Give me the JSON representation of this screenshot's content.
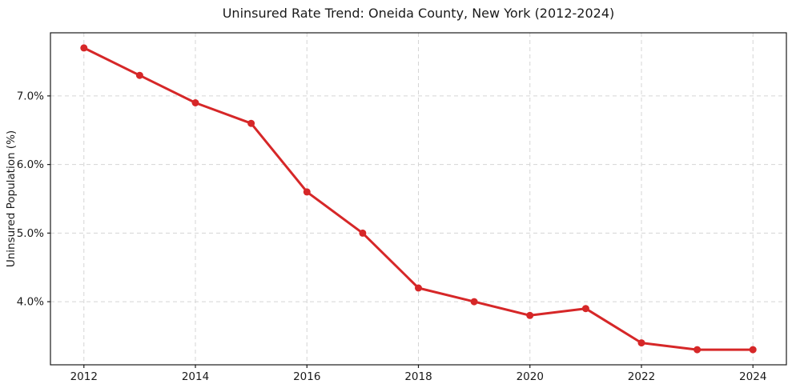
{
  "chart_data": {
    "type": "line",
    "title": "Uninsured Rate Trend: Oneida County, New York (2012-2024)",
    "xlabel": "",
    "ylabel": "Uninsured Population (%)",
    "x": [
      2012,
      2013,
      2014,
      2015,
      2016,
      2017,
      2018,
      2019,
      2020,
      2021,
      2022,
      2023,
      2024
    ],
    "series": [
      {
        "values": [
          7.7,
          7.3,
          6.9,
          6.6,
          5.6,
          5.0,
          4.2,
          4.0,
          3.8,
          3.9,
          3.4,
          3.3,
          3.3
        ],
        "color": "#d62728",
        "marker": "circle",
        "line_width": 3
      }
    ],
    "xlim": [
      2011.4,
      2024.6
    ],
    "ylim": [
      3.08,
      7.92
    ],
    "xticks": [
      2012,
      2014,
      2016,
      2018,
      2020,
      2022,
      2024
    ],
    "xtick_labels": [
      "2012",
      "2014",
      "2016",
      "2018",
      "2020",
      "2022",
      "2024"
    ],
    "yticks": [
      4.0,
      5.0,
      6.0,
      7.0
    ],
    "ytick_labels": [
      "4.0%",
      "5.0%",
      "6.0%",
      "7.0%"
    ],
    "grid": true,
    "grid_style": "dashed",
    "legend": false,
    "colors": {
      "line": "#d62728",
      "grid": "#d5d5d5",
      "spine": "#1a1a1a",
      "text": "#1a1a1a",
      "background": "#ffffff"
    }
  }
}
